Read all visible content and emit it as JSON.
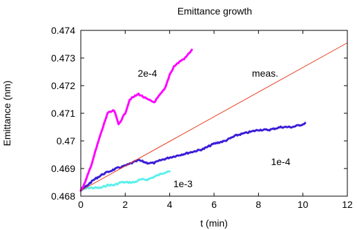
{
  "chart_data": {
    "type": "line",
    "title": "Emittance growth",
    "xlabel": "t (min)",
    "ylabel": "Emittance (nm)",
    "xlim": [
      0,
      12
    ],
    "ylim": [
      0.468,
      0.474
    ],
    "xticks": [
      0,
      2,
      4,
      6,
      8,
      10,
      12
    ],
    "yticks": [
      0.468,
      0.469,
      0.47,
      0.471,
      0.472,
      0.473,
      0.474
    ],
    "xtick_labels": [
      "0",
      "2",
      "4",
      "6",
      "8",
      "10",
      "12"
    ],
    "ytick_labels": [
      "0.468",
      "0.469",
      "0.47",
      "0.471",
      "0.472",
      "0.473",
      "0.474"
    ],
    "grid": false,
    "legend": "none",
    "series": [
      {
        "name": "meas.",
        "color": "#e83a1c",
        "style": "thin",
        "x": [
          0,
          12
        ],
        "y": [
          0.4682,
          0.47355
        ]
      },
      {
        "name": "2e-4",
        "color": "#ff00ff",
        "style": "thick",
        "x": [
          0,
          0.2,
          0.5,
          0.8,
          1.0,
          1.2,
          1.5,
          1.7,
          2.0,
          2.2,
          2.4,
          2.6,
          2.8,
          3.0,
          3.3,
          3.5,
          3.8,
          4.0,
          4.2,
          4.5,
          4.7,
          4.9,
          5.0
        ],
        "y": [
          0.4682,
          0.4685,
          0.4692,
          0.47,
          0.4705,
          0.471,
          0.4711,
          0.4706,
          0.471,
          0.4715,
          0.4716,
          0.4717,
          0.4716,
          0.4715,
          0.4714,
          0.4716,
          0.4719,
          0.4724,
          0.4727,
          0.4729,
          0.473,
          0.4732,
          0.4733
        ]
      },
      {
        "name": "1e-4",
        "color": "#3a1ed8",
        "style": "thick",
        "x": [
          0,
          0.3,
          0.6,
          1.0,
          1.3,
          1.6,
          2.0,
          2.3,
          2.6,
          3.0,
          3.3,
          3.6,
          4.0,
          4.5,
          5.0,
          5.5,
          6.0,
          6.5,
          7.0,
          7.5,
          8.0,
          8.5,
          9.0,
          9.5,
          10.0,
          10.1
        ],
        "y": [
          0.4682,
          0.4684,
          0.4686,
          0.4688,
          0.4689,
          0.469,
          0.4691,
          0.4692,
          0.4693,
          0.4692,
          0.4692,
          0.4693,
          0.4694,
          0.4695,
          0.4696,
          0.4697,
          0.4699,
          0.47,
          0.4702,
          0.4703,
          0.4704,
          0.4704,
          0.4705,
          0.4705,
          0.4706,
          0.47065
        ]
      },
      {
        "name": "1e-3",
        "color": "#5cf0ec",
        "style": "thick",
        "x": [
          0,
          0.3,
          0.6,
          0.9,
          1.2,
          1.5,
          1.8,
          2.1,
          2.4,
          2.7,
          3.0,
          3.3,
          3.6,
          3.9,
          4.0
        ],
        "y": [
          0.4682,
          0.4683,
          0.4683,
          0.4683,
          0.4684,
          0.4684,
          0.4685,
          0.4685,
          0.4685,
          0.4686,
          0.4686,
          0.4687,
          0.4688,
          0.4689,
          0.4689
        ]
      }
    ],
    "annotations": [
      {
        "text": "2e-4",
        "x": 3.0,
        "y": 0.47245
      },
      {
        "text": "meas.",
        "x": 8.3,
        "y": 0.47245
      },
      {
        "text": "1e-4",
        "x": 9.0,
        "y": 0.46925
      },
      {
        "text": "1e-3",
        "x": 4.6,
        "y": 0.46845
      }
    ]
  }
}
